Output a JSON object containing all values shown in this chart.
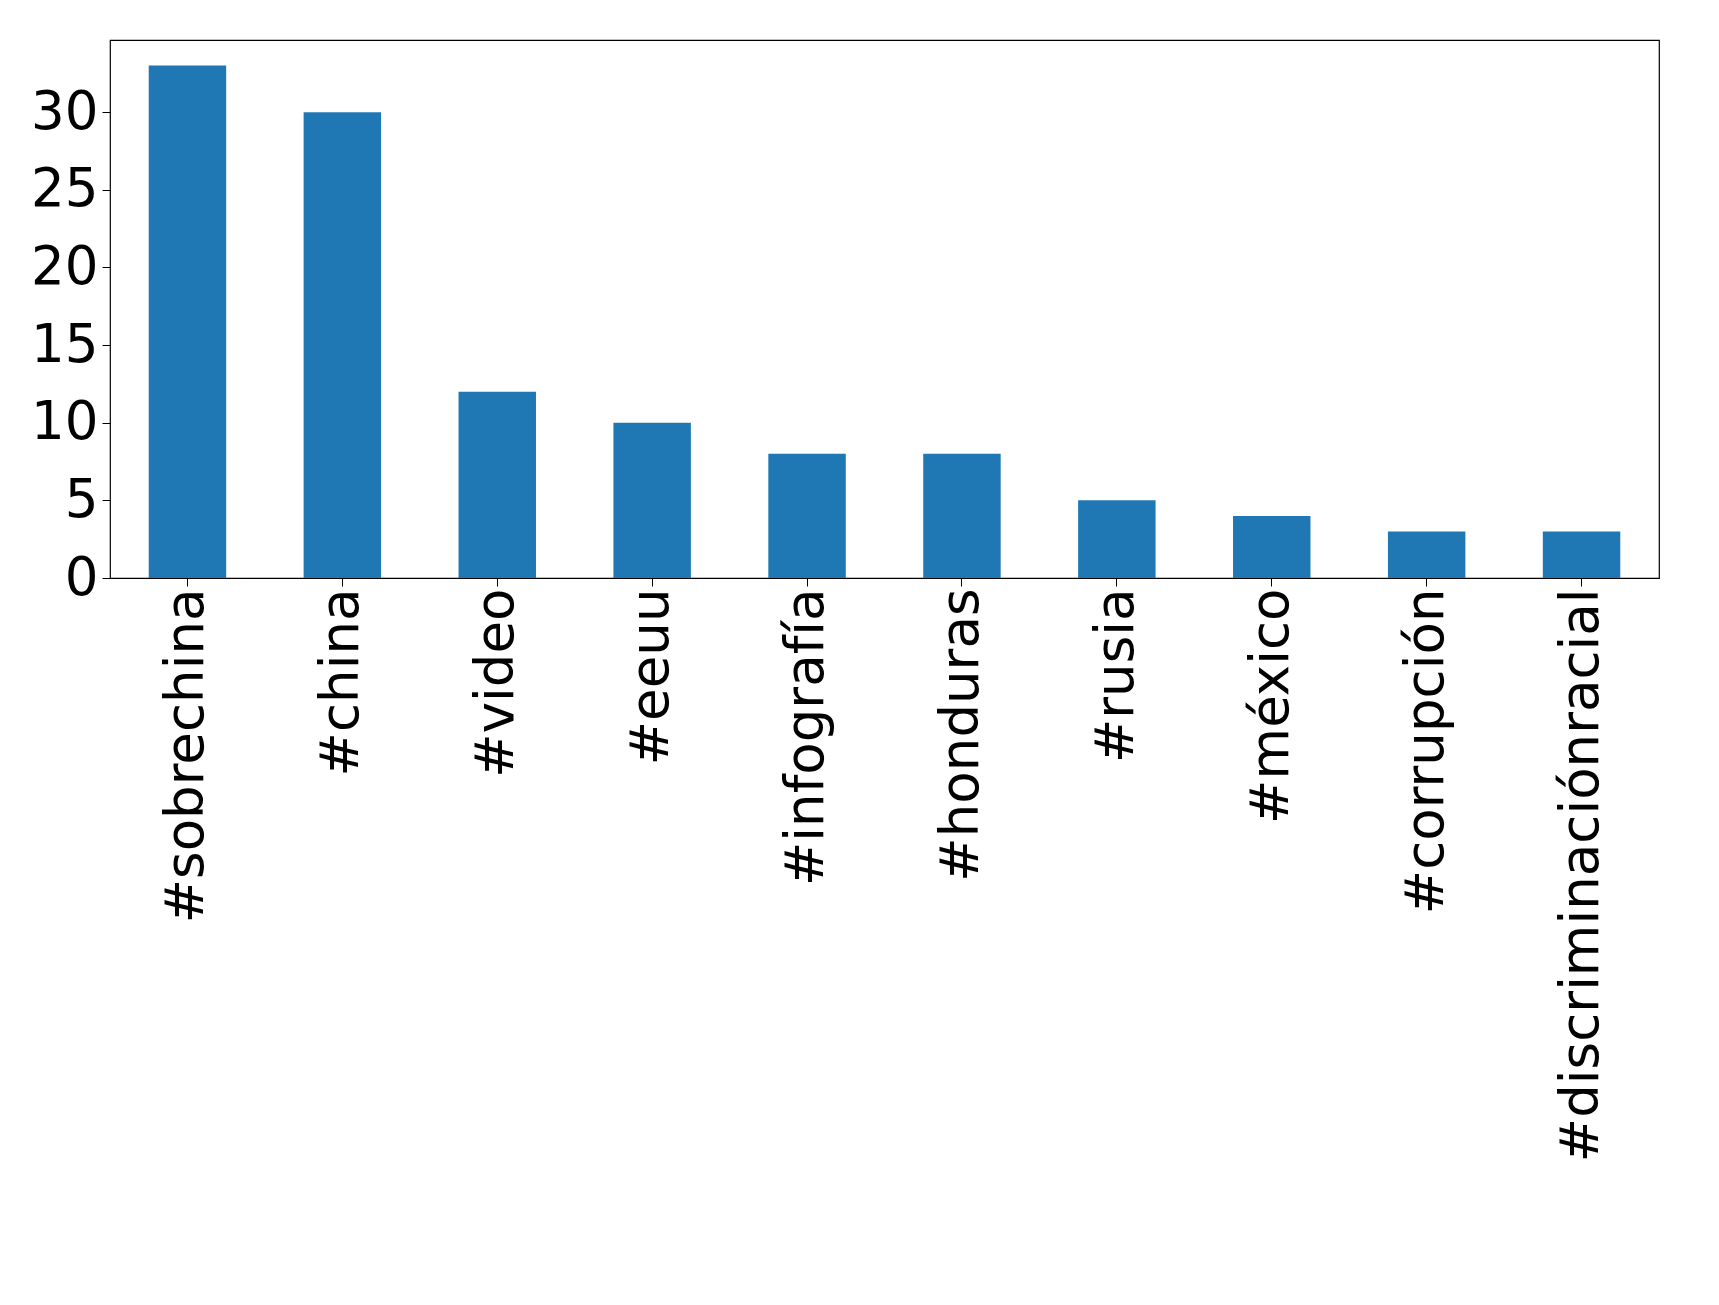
{
  "chart_data": {
    "type": "bar",
    "categories": [
      "#sobrechina",
      "#china",
      "#video",
      "#eeuu",
      "#infografía",
      "#honduras",
      "#rusia",
      "#méxico",
      "#corrupción",
      "#discriminaciónracial"
    ],
    "values": [
      33,
      30,
      12,
      10,
      8,
      8,
      5,
      4,
      3,
      3
    ],
    "color": "#1f77b4",
    "ylim": [
      0,
      34.65
    ],
    "yticks": [
      0,
      5,
      10,
      15,
      20,
      25,
      30
    ],
    "grid": false
  }
}
